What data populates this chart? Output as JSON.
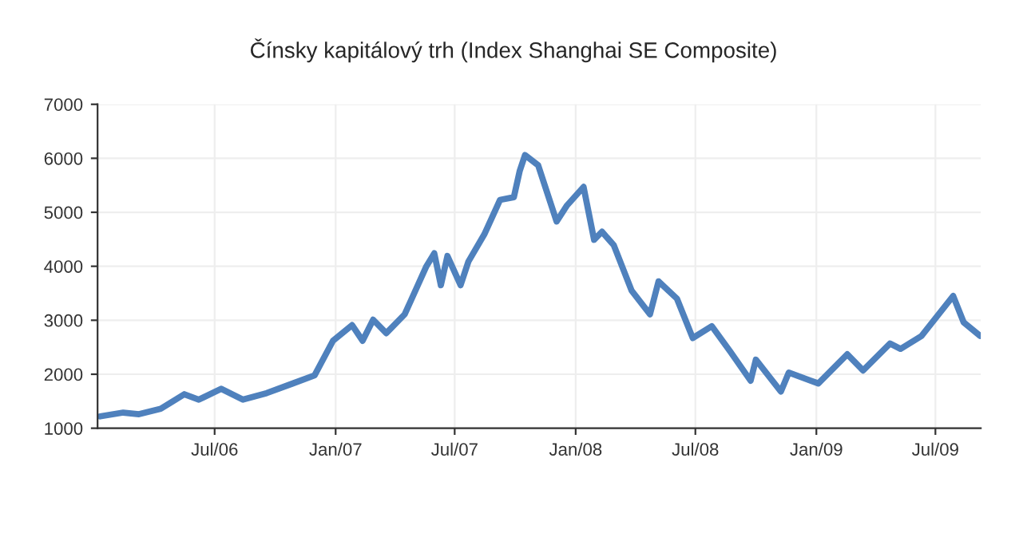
{
  "chart_data": {
    "type": "line",
    "title": "Čínsky kapitálový trh (Index Shanghai SE Composite)",
    "x": [
      "2006-01-08",
      "2006-02-12",
      "2006-03-08",
      "2006-04-10",
      "2006-05-16",
      "2006-06-07",
      "2006-07-11",
      "2006-08-13",
      "2006-09-18",
      "2006-10-28",
      "2006-11-30",
      "2006-12-28",
      "2007-01-26",
      "2007-02-11",
      "2007-02-27",
      "2007-03-19",
      "2007-04-16",
      "2007-05-19",
      "2007-05-31",
      "2007-06-10",
      "2007-06-20",
      "2007-07-10",
      "2007-07-22",
      "2007-08-15",
      "2007-09-08",
      "2007-09-29",
      "2007-10-08",
      "2007-10-16",
      "2007-11-05",
      "2007-12-03",
      "2007-12-19",
      "2008-01-13",
      "2008-01-29",
      "2008-02-10",
      "2008-02-28",
      "2008-03-26",
      "2008-04-23",
      "2008-05-06",
      "2008-06-03",
      "2008-06-27",
      "2008-07-26",
      "2008-08-23",
      "2008-09-23",
      "2008-10-01",
      "2008-11-08",
      "2008-11-20",
      "2009-01-04",
      "2009-02-17",
      "2009-03-13",
      "2009-04-23",
      "2009-05-09",
      "2009-06-10",
      "2009-07-28",
      "2009-08-13",
      "2009-09-07"
    ],
    "series": [
      {
        "color": "#4f81bd",
        "values": [
          1220,
          1290,
          1260,
          1360,
          1630,
          1530,
          1730,
          1530,
          1650,
          1830,
          1980,
          2620,
          2910,
          2620,
          3010,
          2760,
          3110,
          4000,
          4240,
          3650,
          4190,
          3650,
          4090,
          4590,
          5230,
          5280,
          5770,
          6060,
          5870,
          4830,
          5130,
          5470,
          4490,
          4640,
          4390,
          3550,
          3110,
          3720,
          3400,
          2670,
          2890,
          2420,
          1880,
          2270,
          1680,
          2030,
          1830,
          2370,
          2070,
          2570,
          2470,
          2710,
          3450,
          2960,
          2710
        ]
      }
    ],
    "xlim": [
      "2006-01-04",
      "2009-09-08"
    ],
    "xticks": [
      {
        "value": "2006-07-01",
        "label": "Jul/06"
      },
      {
        "value": "2007-01-01",
        "label": "Jan/07"
      },
      {
        "value": "2007-07-01",
        "label": "Jul/07"
      },
      {
        "value": "2008-01-01",
        "label": "Jan/08"
      },
      {
        "value": "2008-07-01",
        "label": "Jul/08"
      },
      {
        "value": "2009-01-01",
        "label": "Jan/09"
      },
      {
        "value": "2009-07-01",
        "label": "Jul/09"
      }
    ],
    "ylim": [
      1000,
      7000
    ],
    "yticks": [
      1000,
      2000,
      3000,
      4000,
      5000,
      6000,
      7000
    ],
    "grid": true,
    "legend": false,
    "marker": "none",
    "line_style": "solid"
  }
}
